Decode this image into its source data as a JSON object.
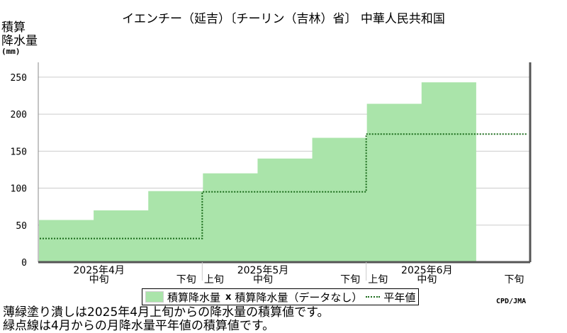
{
  "title": "イエンチー（延吉）〔チーリン（吉林）省〕 中華人民共和国",
  "y_axis_title_line1": "積算",
  "y_axis_title_line2": "降水量",
  "y_axis_unit": "(mm)",
  "legend": {
    "bar_label": "積算降水量",
    "nodata_mark": "x",
    "nodata_label": "積算降水量（データなし）",
    "normal_label": "平年値"
  },
  "credit": "CPD/JMA",
  "notes": {
    "line1": "薄緑塗り潰しは2025年4月上旬からの降水量の積算値です。",
    "line2": "緑点線は4月からの月降水量平年値の積算値です。"
  },
  "colors": {
    "bar_fill": "#aae4aa",
    "normal_line": "#1a6b1a",
    "grid": "#cccccc",
    "frame": "#888888"
  },
  "chart_data": {
    "type": "area",
    "x_categories": [
      "上旬",
      "中旬",
      "下旬",
      "上旬",
      "中旬",
      "下旬",
      "上旬",
      "中旬",
      "下旬"
    ],
    "x_tick_labels": [
      "",
      "中旬",
      "下旬",
      "上旬",
      "中旬",
      "下旬",
      "上旬",
      "中旬",
      "下旬"
    ],
    "month_labels": [
      "2025年4月",
      "2025年5月",
      "2025年6月"
    ],
    "series": [
      {
        "name": "積算降水量",
        "style": "stepped-fill",
        "values": [
          57,
          70,
          96,
          120,
          140,
          168,
          214,
          243
        ]
      },
      {
        "name": "平年値",
        "style": "dotted-step",
        "monthly_values": [
          32,
          95,
          173
        ]
      }
    ],
    "ylim": [
      0,
      270
    ],
    "y_ticks": [
      0,
      50,
      100,
      150,
      200,
      250
    ],
    "grid": true,
    "legend_position": "bottom"
  }
}
